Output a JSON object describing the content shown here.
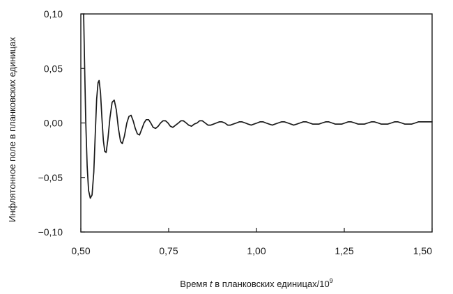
{
  "chart_data": {
    "type": "line",
    "title": "",
    "xlabel": {
      "prefix": "Время ",
      "var": "t",
      "middle": " в планковских единицах/10",
      "sup": "9"
    },
    "ylabel": "Инфлятонное поле в планковских единицах",
    "xlim": [
      0.5,
      1.5
    ],
    "ylim": [
      -0.1,
      0.1
    ],
    "x_ticks": [
      {
        "value": 0.5,
        "label": "0,50"
      },
      {
        "value": 0.75,
        "label": "0,75"
      },
      {
        "value": 1.0,
        "label": "1,00"
      },
      {
        "value": 1.25,
        "label": "1,25"
      },
      {
        "value": 1.5,
        "label": "1,50"
      }
    ],
    "y_ticks": [
      {
        "value": 0.1,
        "label": "0,10"
      },
      {
        "value": 0.05,
        "label": "0,05"
      },
      {
        "value": 0.0,
        "label": "0,00"
      },
      {
        "value": -0.05,
        "label": "−0,05"
      },
      {
        "value": -0.1,
        "label": "−0,10"
      }
    ],
    "grid": false,
    "legend": "none",
    "series": [
      {
        "color": "#1a1a1a",
        "points": [
          [
            0.508,
            0.1
          ],
          [
            0.511,
            0.05
          ],
          [
            0.514,
            0.0
          ],
          [
            0.518,
            -0.04
          ],
          [
            0.522,
            -0.062
          ],
          [
            0.527,
            -0.069
          ],
          [
            0.532,
            -0.066
          ],
          [
            0.537,
            -0.045
          ],
          [
            0.541,
            -0.01
          ],
          [
            0.545,
            0.022
          ],
          [
            0.549,
            0.037
          ],
          [
            0.552,
            0.039
          ],
          [
            0.556,
            0.028
          ],
          [
            0.56,
            0.005
          ],
          [
            0.564,
            -0.016
          ],
          [
            0.568,
            -0.026
          ],
          [
            0.572,
            -0.027
          ],
          [
            0.577,
            -0.015
          ],
          [
            0.583,
            0.005
          ],
          [
            0.589,
            0.019
          ],
          [
            0.595,
            0.021
          ],
          [
            0.601,
            0.012
          ],
          [
            0.607,
            -0.005
          ],
          [
            0.613,
            -0.017
          ],
          [
            0.618,
            -0.019
          ],
          [
            0.624,
            -0.012
          ],
          [
            0.631,
            0.0
          ],
          [
            0.637,
            0.006
          ],
          [
            0.643,
            0.007
          ],
          [
            0.649,
            0.002
          ],
          [
            0.655,
            -0.005
          ],
          [
            0.661,
            -0.01
          ],
          [
            0.667,
            -0.011
          ],
          [
            0.673,
            -0.006
          ],
          [
            0.68,
            0.0
          ],
          [
            0.686,
            0.003
          ],
          [
            0.693,
            0.003
          ],
          [
            0.699,
            0.0
          ],
          [
            0.706,
            -0.004
          ],
          [
            0.713,
            -0.005
          ],
          [
            0.72,
            -0.003
          ],
          [
            0.727,
            0.0
          ],
          [
            0.734,
            0.002
          ],
          [
            0.741,
            0.002
          ],
          [
            0.748,
            0.0
          ],
          [
            0.755,
            -0.003
          ],
          [
            0.762,
            -0.004
          ],
          [
            0.77,
            -0.002
          ],
          [
            0.778,
            0.0
          ],
          [
            0.785,
            0.002
          ],
          [
            0.792,
            0.002
          ],
          [
            0.8,
            0.0
          ],
          [
            0.807,
            -0.002
          ],
          [
            0.815,
            -0.003
          ],
          [
            0.823,
            -0.001
          ],
          [
            0.831,
            0.0
          ],
          [
            0.838,
            0.002
          ],
          [
            0.846,
            0.002
          ],
          [
            0.854,
            0.0
          ],
          [
            0.862,
            -0.002
          ],
          [
            0.87,
            -0.002
          ],
          [
            0.878,
            -0.001
          ],
          [
            0.886,
            0.0
          ],
          [
            0.894,
            0.001
          ],
          [
            0.902,
            0.001
          ],
          [
            0.91,
            0.0
          ],
          [
            0.918,
            -0.002
          ],
          [
            0.926,
            -0.002
          ],
          [
            0.934,
            -0.001
          ],
          [
            0.943,
            0.0
          ],
          [
            0.951,
            0.001
          ],
          [
            0.959,
            0.001
          ],
          [
            0.968,
            0.0
          ],
          [
            0.976,
            -0.001
          ],
          [
            0.985,
            -0.002
          ],
          [
            0.993,
            -0.001
          ],
          [
            1.002,
            0.0
          ],
          [
            1.01,
            0.001
          ],
          [
            1.019,
            0.001
          ],
          [
            1.027,
            0.0
          ],
          [
            1.036,
            -0.001
          ],
          [
            1.045,
            -0.002
          ],
          [
            1.053,
            -0.001
          ],
          [
            1.062,
            0.0
          ],
          [
            1.071,
            0.001
          ],
          [
            1.08,
            0.001
          ],
          [
            1.089,
            0.0
          ],
          [
            1.098,
            -0.001
          ],
          [
            1.106,
            -0.002
          ],
          [
            1.115,
            -0.001
          ],
          [
            1.124,
            0.0
          ],
          [
            1.133,
            0.001
          ],
          [
            1.142,
            0.001
          ],
          [
            1.151,
            0.0
          ],
          [
            1.16,
            -0.001
          ],
          [
            1.169,
            -0.001
          ],
          [
            1.178,
            -0.001
          ],
          [
            1.187,
            0.0
          ],
          [
            1.197,
            0.001
          ],
          [
            1.206,
            0.001
          ],
          [
            1.215,
            0.0
          ],
          [
            1.224,
            -0.001
          ],
          [
            1.233,
            -0.001
          ],
          [
            1.243,
            -0.001
          ],
          [
            1.252,
            0.0
          ],
          [
            1.261,
            0.001
          ],
          [
            1.27,
            0.001
          ],
          [
            1.28,
            0.0
          ],
          [
            1.289,
            -0.001
          ],
          [
            1.298,
            -0.001
          ],
          [
            1.308,
            -0.001
          ],
          [
            1.317,
            0.0
          ],
          [
            1.327,
            0.001
          ],
          [
            1.336,
            0.001
          ],
          [
            1.346,
            0.0
          ],
          [
            1.355,
            -0.001
          ],
          [
            1.365,
            -0.001
          ],
          [
            1.374,
            -0.001
          ],
          [
            1.384,
            0.0
          ],
          [
            1.393,
            0.001
          ],
          [
            1.403,
            0.001
          ],
          [
            1.413,
            0.0
          ],
          [
            1.422,
            -0.001
          ],
          [
            1.432,
            -0.001
          ],
          [
            1.442,
            -0.001
          ],
          [
            1.452,
            0.0
          ],
          [
            1.461,
            0.001
          ],
          [
            1.471,
            0.001
          ],
          [
            1.481,
            0.001
          ],
          [
            1.49,
            0.001
          ],
          [
            1.5,
            0.001
          ]
        ]
      }
    ]
  }
}
